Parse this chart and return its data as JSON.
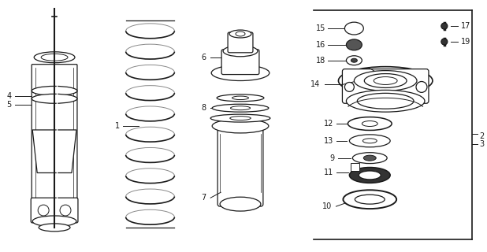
{
  "background_color": "#ffffff",
  "line_color": "#1a1a1a",
  "fig_width": 6.18,
  "fig_height": 3.2,
  "dpi": 100
}
